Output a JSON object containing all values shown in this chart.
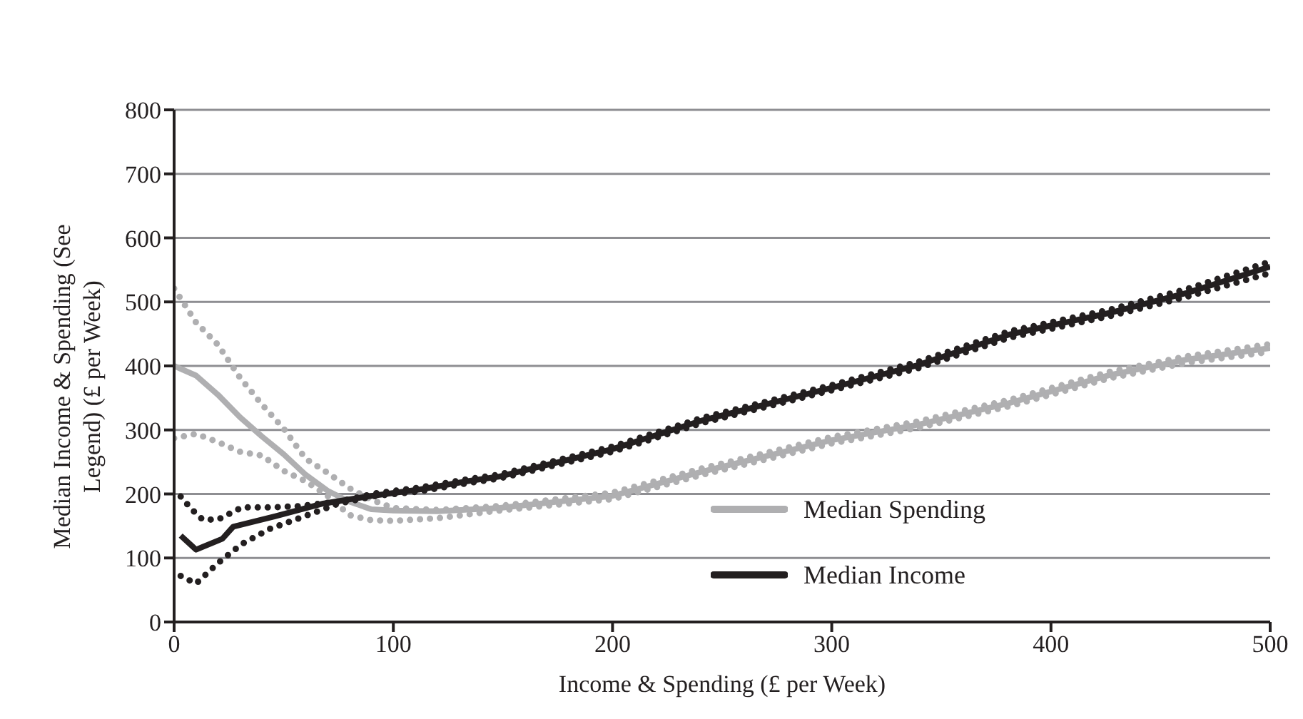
{
  "chart_data": {
    "type": "line",
    "xlabel": "Income & Spending (£ per Week)",
    "ylabel": "Median Income & Spending (See Legend) (£ per Week)",
    "xlim": [
      0,
      500
    ],
    "xticks": [
      0,
      100,
      200,
      300,
      400,
      500
    ],
    "ylim": [
      0,
      800
    ],
    "yticks": [
      0,
      100,
      200,
      300,
      400,
      500,
      600,
      700,
      800
    ],
    "grid": "y",
    "legend": "bottom",
    "marker": "none",
    "series": [
      {
        "name": "Median Spending",
        "color": "#afafb1",
        "line_style": "solid",
        "x": [
          0,
          10,
          20,
          30,
          40,
          50,
          60,
          70,
          80,
          90,
          100,
          120,
          148,
          200,
          241,
          300,
          339,
          381,
          427,
          462,
          500
        ],
        "values": [
          400,
          385,
          355,
          320,
          290,
          262,
          230,
          205,
          188,
          176,
          174,
          173,
          178,
          197,
          235,
          284,
          308,
          342,
          386,
          410,
          428
        ]
      },
      {
        "color": "#afafb1",
        "line_style": "dotted",
        "x": [
          0,
          10,
          20,
          30,
          40,
          50,
          60,
          70,
          80,
          90,
          100,
          120,
          148,
          200,
          241,
          300,
          339,
          381,
          427,
          462,
          500
        ],
        "values": [
          521,
          468,
          433,
          382,
          340,
          302,
          255,
          233,
          209,
          191,
          178,
          175,
          181,
          202,
          240,
          289,
          313,
          347,
          391,
          415,
          434
        ]
      },
      {
        "color": "#afafb1",
        "line_style": "dotted",
        "x": [
          0,
          10,
          20,
          30,
          40,
          50,
          60,
          70,
          80,
          90,
          100,
          120,
          148,
          200,
          241,
          300,
          339,
          381,
          427,
          462,
          500
        ],
        "values": [
          287,
          294,
          281,
          266,
          260,
          236,
          220,
          197,
          167,
          159,
          158,
          162,
          174,
          192,
          230,
          279,
          303,
          337,
          381,
          405,
          422
        ]
      },
      {
        "name": "Median Income",
        "color": "#231f20",
        "line_style": "solid",
        "x": [
          3,
          10,
          22,
          27,
          46,
          68,
          90,
          112,
          134,
          148,
          200,
          241,
          300,
          339,
          381,
          427,
          462,
          500
        ],
        "values": [
          135,
          113,
          130,
          149,
          165,
          185,
          197,
          207,
          220,
          227,
          270,
          315,
          366,
          401,
          449,
          483,
          514,
          555
        ]
      },
      {
        "color": "#231f20",
        "line_style": "dotted",
        "x": [
          3,
          8,
          13,
          20,
          31,
          44,
          57,
          75,
          92,
          112,
          134,
          148,
          200,
          241,
          300,
          339,
          381,
          427,
          462,
          500
        ],
        "values": [
          196,
          176,
          160,
          160,
          179,
          179,
          181,
          188,
          201,
          210,
          223,
          230,
          274,
          319,
          370,
          406,
          454,
          488,
          520,
          563
        ]
      },
      {
        "color": "#231f20",
        "line_style": "dotted",
        "x": [
          3,
          10,
          20,
          31,
          44,
          57,
          75,
          92,
          112,
          134,
          148,
          200,
          241,
          300,
          339,
          381,
          427,
          462,
          500
        ],
        "values": [
          72,
          60,
          92,
          122,
          146,
          162,
          185,
          197,
          204,
          217,
          224,
          266,
          311,
          362,
          396,
          444,
          478,
          508,
          545
        ]
      }
    ]
  }
}
